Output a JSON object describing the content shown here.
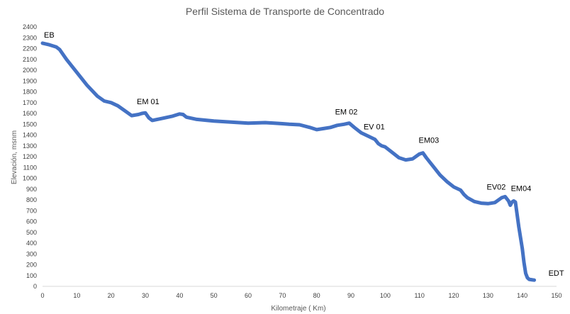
{
  "chart_data": {
    "type": "line",
    "title": "Perfil  Sistema de Transporte de Concentrado",
    "xlabel": "Kilometraje ( Km)",
    "ylabel": "Elevación, msnm",
    "xlim": [
      0,
      150
    ],
    "ylim": [
      0,
      2400
    ],
    "xticks": [
      0,
      10,
      20,
      30,
      40,
      50,
      60,
      70,
      80,
      90,
      100,
      110,
      120,
      130,
      140,
      150
    ],
    "yticks": [
      0,
      100,
      200,
      300,
      400,
      500,
      600,
      700,
      800,
      900,
      1000,
      1100,
      1200,
      1300,
      1400,
      1500,
      1600,
      1700,
      1800,
      1900,
      2000,
      2100,
      2200,
      2300,
      2400
    ],
    "grid": false,
    "line_color": "#4472C4",
    "series": [
      {
        "x": [
          0,
          2,
          4,
          5,
          7,
          10,
          13,
          16,
          18,
          20,
          22,
          24,
          26,
          28,
          29,
          30,
          31,
          32,
          35,
          38,
          40,
          41,
          42,
          45,
          50,
          55,
          60,
          65,
          70,
          72,
          75,
          78,
          80,
          82,
          84,
          86,
          88,
          89.5,
          91,
          93,
          95,
          97,
          98,
          99,
          100,
          102,
          104,
          106,
          108,
          110,
          111,
          112,
          114,
          116,
          118,
          120,
          122,
          123,
          124,
          126,
          128,
          130,
          132,
          134,
          135,
          136,
          136.5,
          137,
          137.5,
          138,
          139,
          140,
          140.5,
          141,
          141.5,
          142,
          143,
          143.5
        ],
        "y": [
          2250,
          2235,
          2215,
          2190,
          2100,
          1980,
          1860,
          1760,
          1715,
          1700,
          1670,
          1625,
          1580,
          1590,
          1600,
          1605,
          1560,
          1535,
          1555,
          1575,
          1595,
          1590,
          1565,
          1545,
          1530,
          1520,
          1510,
          1515,
          1505,
          1500,
          1495,
          1470,
          1450,
          1460,
          1470,
          1490,
          1500,
          1510,
          1470,
          1420,
          1390,
          1360,
          1320,
          1300,
          1290,
          1240,
          1190,
          1170,
          1180,
          1225,
          1235,
          1190,
          1110,
          1030,
          970,
          920,
          890,
          850,
          820,
          785,
          770,
          765,
          775,
          820,
          830,
          790,
          750,
          780,
          790,
          780,
          550,
          350,
          220,
          120,
          80,
          65,
          60,
          58
        ]
      }
    ],
    "annotations": [
      {
        "text": "EB",
        "x": 0,
        "y": 2250
      },
      {
        "text": "EM 01",
        "x": 30,
        "y": 1605
      },
      {
        "text": "EM 02",
        "x": 89.5,
        "y": 1510
      },
      {
        "text": "EV 01",
        "x": 97,
        "y": 1360
      },
      {
        "text": "EM03",
        "x": 111,
        "y": 1235
      },
      {
        "text": "EV02",
        "x": 135,
        "y": 830
      },
      {
        "text": "EM04",
        "x": 137.5,
        "y": 790
      },
      {
        "text": "EDT",
        "x": 143.5,
        "y": 58
      }
    ]
  }
}
